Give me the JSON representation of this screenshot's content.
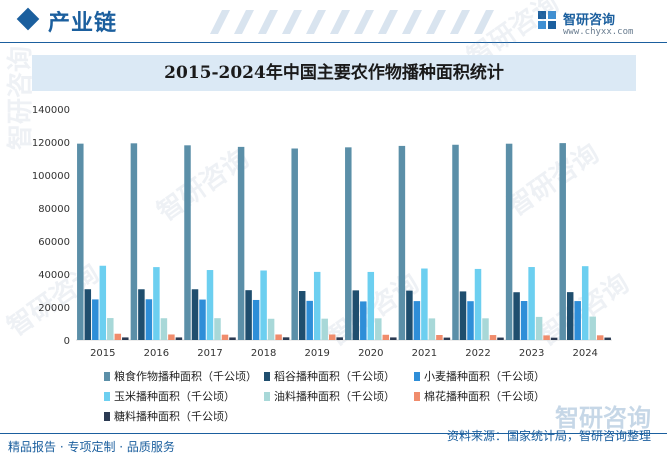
{
  "header": {
    "title": "产业链",
    "logo_name": "智研咨询",
    "logo_url": "www.chyxx.com"
  },
  "footer": {
    "left_text": "精品报告 · 专项定制 · 品质服务",
    "source_text": "资料来源：国家统计局，智研咨询整理",
    "brand_watermark": "智研咨询"
  },
  "colors": {
    "brand": "#1b5f9e",
    "title_band": "#dbe9f5"
  },
  "chart_data": {
    "type": "bar",
    "title": "2015-2024年中国主要农作物播种面积统计",
    "xlabel": "",
    "ylabel": "",
    "ylim": [
      0,
      140000
    ],
    "yticks": [
      "0",
      "20000",
      "40000",
      "60000",
      "80000",
      "100000",
      "120000",
      "140000"
    ],
    "grid": false,
    "legend_position": "bottom",
    "categories": [
      "2015",
      "2016",
      "2017",
      "2018",
      "2019",
      "2020",
      "2021",
      "2022",
      "2023",
      "2024"
    ],
    "series": [
      {
        "name": "粮食作物播种面积（千公顷）",
        "color": "#5b8fa8",
        "values": [
          119000,
          119200,
          117990,
          117040,
          116060,
          116770,
          117630,
          118330,
          118970,
          119320
        ]
      },
      {
        "name": "稻谷播种面积（千公顷）",
        "color": "#1f4e6e",
        "values": [
          30780,
          30750,
          30750,
          30190,
          29690,
          30080,
          29920,
          29450,
          28950,
          29010
        ]
      },
      {
        "name": "小麦播种面积（千公顷）",
        "color": "#2e8ed8",
        "values": [
          24600,
          24690,
          24510,
          24270,
          23730,
          23380,
          23570,
          23520,
          23630,
          23590
        ]
      },
      {
        "name": "玉米播种面积（千公顷）",
        "color": "#6ccff0",
        "values": [
          45000,
          44180,
          42400,
          42130,
          41280,
          41260,
          43320,
          43070,
          44220,
          44740
        ]
      },
      {
        "name": "油料播种面积（千公顷）",
        "color": "#a8d8d8",
        "values": [
          13300,
          13190,
          13220,
          12870,
          12930,
          13130,
          13100,
          13140,
          14000,
          14200
        ]
      },
      {
        "name": "棉花播种面积（千公顷）",
        "color": "#f08c6c",
        "values": [
          3800,
          3350,
          3230,
          3350,
          3340,
          3170,
          3030,
          3000,
          2790,
          2840
        ]
      },
      {
        "name": "糖料播种面积（千公顷）",
        "color": "#2b3a52",
        "values": [
          1570,
          1560,
          1550,
          1620,
          1610,
          1570,
          1460,
          1470,
          1410,
          1470
        ]
      }
    ]
  },
  "watermarks": [
    "智研咨询",
    "智研咨询",
    "智研咨询",
    "智研咨询",
    "智研咨询",
    "智研咨询",
    "智研咨询"
  ]
}
